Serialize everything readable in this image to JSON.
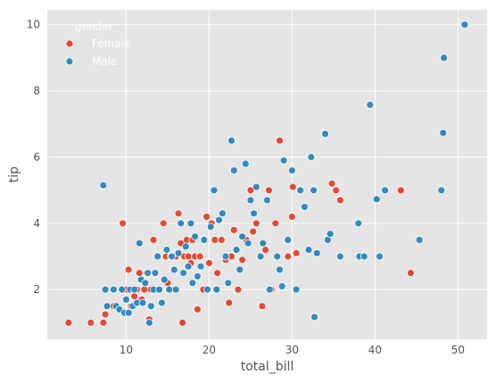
{
  "chart_data": {
    "type": "scatter",
    "title": "",
    "xlabel": "total_bill",
    "ylabel": "tip",
    "xlim": [
      0.5,
      53.5
    ],
    "ylim": [
      0.5,
      10.45
    ],
    "xticks": [
      10,
      20,
      30,
      40,
      50
    ],
    "yticks": [
      2,
      4,
      6,
      8,
      10
    ],
    "grid": true,
    "background": "#e5e5e5",
    "gridColor": "#ffffff",
    "legend": {
      "title": "gender",
      "placement": "top-left"
    },
    "series": [
      {
        "name": "Female",
        "color": "#e24a33",
        "points": [
          [
            3.07,
            1.0
          ],
          [
            5.75,
            1.0
          ],
          [
            7.25,
            1.0
          ],
          [
            7.5,
            1.25
          ],
          [
            8.5,
            1.5
          ],
          [
            9.6,
            4.0
          ],
          [
            10.1,
            2.0
          ],
          [
            10.3,
            2.6
          ],
          [
            10.6,
            1.5
          ],
          [
            11.0,
            1.8
          ],
          [
            11.3,
            2.0
          ],
          [
            11.6,
            2.5
          ],
          [
            11.9,
            1.7
          ],
          [
            12.2,
            2.0
          ],
          [
            12.5,
            2.5
          ],
          [
            12.8,
            1.1
          ],
          [
            13.0,
            2.0
          ],
          [
            13.3,
            3.5
          ],
          [
            13.5,
            2.5
          ],
          [
            14.0,
            2.0
          ],
          [
            14.5,
            4.0
          ],
          [
            14.8,
            3.0
          ],
          [
            15.0,
            2.2
          ],
          [
            15.4,
            3.0
          ],
          [
            15.8,
            2.0
          ],
          [
            16.0,
            3.0
          ],
          [
            16.3,
            4.3
          ],
          [
            16.6,
            3.4
          ],
          [
            16.8,
            1.0
          ],
          [
            17.0,
            3.0
          ],
          [
            17.3,
            3.5
          ],
          [
            17.5,
            3.0
          ],
          [
            17.8,
            2.8
          ],
          [
            18.0,
            3.5
          ],
          [
            18.3,
            3.0
          ],
          [
            18.6,
            1.4
          ],
          [
            18.9,
            3.0
          ],
          [
            19.3,
            2.0
          ],
          [
            19.7,
            4.2
          ],
          [
            20.0,
            2.8
          ],
          [
            20.3,
            4.0
          ],
          [
            20.7,
            3.5
          ],
          [
            21.0,
            2.5
          ],
          [
            21.5,
            3.5
          ],
          [
            22.0,
            2.9
          ],
          [
            22.4,
            1.6
          ],
          [
            22.7,
            3.0
          ],
          [
            23.0,
            3.8
          ],
          [
            23.5,
            2.0
          ],
          [
            24.0,
            2.9
          ],
          [
            24.5,
            3.5
          ],
          [
            25.0,
            5.0
          ],
          [
            25.3,
            3.75
          ],
          [
            25.7,
            4.0
          ],
          [
            26.4,
            1.5
          ],
          [
            26.8,
            3.2
          ],
          [
            27.2,
            5.0
          ],
          [
            27.5,
            2.0
          ],
          [
            28.0,
            4.0
          ],
          [
            28.5,
            6.5
          ],
          [
            29.5,
            3.0
          ],
          [
            30.0,
            4.2
          ],
          [
            30.1,
            5.1
          ],
          [
            30.5,
            3.1
          ],
          [
            34.8,
            5.2
          ],
          [
            35.3,
            5.0
          ],
          [
            35.8,
            4.7
          ],
          [
            43.1,
            5.0
          ],
          [
            44.3,
            2.5
          ]
        ]
      },
      {
        "name": "Male",
        "color": "#348abd",
        "points": [
          [
            7.25,
            5.15
          ],
          [
            7.5,
            2.0
          ],
          [
            7.7,
            1.5
          ],
          [
            8.5,
            2.0
          ],
          [
            8.8,
            1.5
          ],
          [
            9.2,
            1.4
          ],
          [
            9.5,
            2.0
          ],
          [
            9.8,
            1.3
          ],
          [
            10.0,
            1.7
          ],
          [
            10.3,
            1.3
          ],
          [
            10.5,
            2.0
          ],
          [
            10.8,
            1.5
          ],
          [
            11.0,
            2.0
          ],
          [
            11.3,
            1.6
          ],
          [
            11.6,
            3.4
          ],
          [
            11.8,
            2.3
          ],
          [
            12.0,
            1.6
          ],
          [
            12.3,
            2.2
          ],
          [
            12.6,
            2.5
          ],
          [
            12.8,
            1.0
          ],
          [
            13.0,
            1.5
          ],
          [
            13.3,
            2.0
          ],
          [
            13.5,
            2.5
          ],
          [
            13.8,
            3.0
          ],
          [
            14.0,
            2.0
          ],
          [
            14.3,
            1.6
          ],
          [
            14.6,
            2.3
          ],
          [
            14.9,
            3.2
          ],
          [
            15.2,
            2.0
          ],
          [
            15.5,
            3.0
          ],
          [
            15.8,
            2.6
          ],
          [
            16.0,
            2.0
          ],
          [
            16.3,
            3.1
          ],
          [
            16.6,
            4.0
          ],
          [
            16.9,
            2.5
          ],
          [
            17.2,
            3.3
          ],
          [
            17.5,
            2.7
          ],
          [
            17.8,
            4.0
          ],
          [
            18.0,
            2.2
          ],
          [
            18.3,
            3.6
          ],
          [
            18.6,
            2.4
          ],
          [
            19.0,
            2.7
          ],
          [
            19.4,
            3.5
          ],
          [
            19.8,
            2.0
          ],
          [
            20.2,
            3.9
          ],
          [
            20.6,
            5.0
          ],
          [
            20.9,
            2.0
          ],
          [
            21.2,
            4.1
          ],
          [
            21.6,
            4.3
          ],
          [
            22.0,
            3.0
          ],
          [
            22.3,
            2.2
          ],
          [
            22.7,
            6.5
          ],
          [
            23.0,
            5.6
          ],
          [
            23.3,
            3.2
          ],
          [
            23.7,
            2.6
          ],
          [
            24.0,
            3.6
          ],
          [
            24.4,
            5.8
          ],
          [
            24.7,
            3.4
          ],
          [
            25.0,
            4.7
          ],
          [
            25.4,
            4.3
          ],
          [
            25.7,
            5.1
          ],
          [
            26.2,
            3.0
          ],
          [
            26.5,
            3.4
          ],
          [
            27.0,
            4.7
          ],
          [
            27.3,
            2.0
          ],
          [
            28.2,
            3.0
          ],
          [
            28.5,
            2.6
          ],
          [
            28.8,
            2.1
          ],
          [
            29.0,
            5.9
          ],
          [
            29.5,
            3.5
          ],
          [
            30.0,
            5.6
          ],
          [
            30.5,
            2.0
          ],
          [
            31.0,
            5.0
          ],
          [
            31.5,
            4.5
          ],
          [
            32.0,
            3.2
          ],
          [
            32.3,
            6.0
          ],
          [
            32.6,
            5.0
          ],
          [
            32.7,
            1.17
          ],
          [
            33.0,
            3.1
          ],
          [
            34.0,
            6.7
          ],
          [
            34.3,
            3.5
          ],
          [
            34.6,
            3.68
          ],
          [
            35.8,
            3.0
          ],
          [
            38.0,
            4.0
          ],
          [
            38.1,
            3.0
          ],
          [
            38.7,
            3.0
          ],
          [
            39.4,
            7.58
          ],
          [
            40.2,
            4.73
          ],
          [
            40.55,
            3.0
          ],
          [
            41.2,
            5.0
          ],
          [
            45.35,
            3.5
          ],
          [
            48.0,
            5.0
          ],
          [
            48.2,
            6.73
          ],
          [
            48.3,
            9.0
          ],
          [
            50.8,
            10.0
          ]
        ]
      }
    ]
  }
}
